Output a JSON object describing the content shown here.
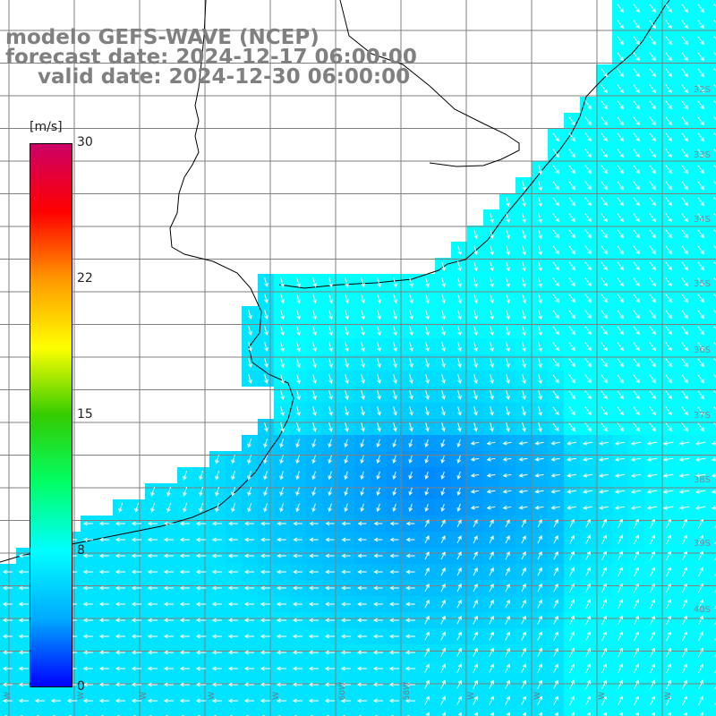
{
  "title": {
    "line1": "modelo GEFS-WAVE (NCEP)",
    "line2": "forecast date: 2024-12-17 06:00:00",
    "line3": "valid date: 2024-12-30 06:00:00"
  },
  "colorbar": {
    "unit": "[m/s]",
    "ticks": [
      "30",
      "22",
      "15",
      "8",
      "0"
    ],
    "tick_values": [
      30,
      22,
      15,
      8,
      0
    ],
    "min": 0,
    "max": 30,
    "colors": [
      "#0000ff",
      "#00aaff",
      "#00ffff",
      "#00ff66",
      "#33cc00",
      "#ffff00",
      "#ff9900",
      "#ff0000",
      "#cc0066"
    ]
  },
  "lat_labels": [
    "32S",
    "33S",
    "34S",
    "35S",
    "36S",
    "37S",
    "38S",
    "39S",
    "40S"
  ],
  "lon_labels": [
    "W",
    "W",
    "W",
    "W",
    "W",
    "60W",
    "58W",
    "W",
    "W",
    "W",
    "W"
  ],
  "field": {
    "variable": "wind speed",
    "colors": {
      "land": "#ffffff",
      "coast": "#000000",
      "grid": "#7f7f7f",
      "arrow": "#ffffff"
    }
  }
}
